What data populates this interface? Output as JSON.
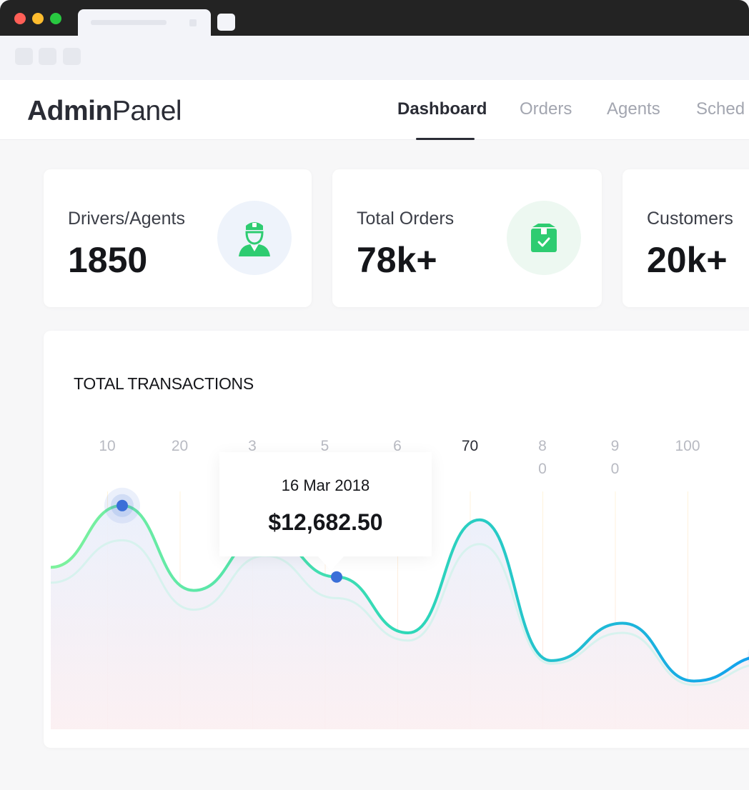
{
  "app": {
    "logo_bold": "Admin",
    "logo_light": "Panel"
  },
  "nav": {
    "items": [
      {
        "label": "Dashboard",
        "active": true
      },
      {
        "label": "Orders",
        "active": false
      },
      {
        "label": "Agents",
        "active": false
      },
      {
        "label": "Sched",
        "active": false
      }
    ]
  },
  "stats": [
    {
      "label": "Drivers/Agents",
      "value": "1850",
      "icon": "agent-icon",
      "color": "#2ecc71",
      "bg": "#eef3fb"
    },
    {
      "label": "Total Orders",
      "value": "78k+",
      "icon": "package-icon",
      "color": "#2ecc71",
      "bg": "#edf8f1"
    },
    {
      "label": "Customers",
      "value": "20k+",
      "icon": "",
      "color": "",
      "bg": ""
    }
  ],
  "chart_data": {
    "type": "area",
    "title": "TOTAL TRANSACTIONS",
    "tick_labels": [
      "10",
      "20",
      "3",
      "5",
      "6",
      "70",
      "8\n0",
      "9\n0",
      "100"
    ],
    "active_tick": "70",
    "series": [
      {
        "values": [
          11200,
          12800,
          10600,
          12050,
          10950,
          9500,
          12430,
          8780,
          9750,
          8250,
          8900
        ]
      },
      {
        "values": [
          10800,
          11900,
          10100,
          11500,
          10400,
          9300,
          11800,
          8700,
          9500,
          8150,
          8700
        ]
      }
    ],
    "y_range": [
      7000,
      14000
    ],
    "highlight_points": [
      1,
      4,
      10
    ],
    "colors": {
      "line_start": "#7ef29d",
      "line_end": "#11a0f0",
      "marker": "#3a6fd8"
    },
    "tooltip": {
      "date": "16 Mar 2018",
      "amount": "$12,682.50"
    }
  }
}
